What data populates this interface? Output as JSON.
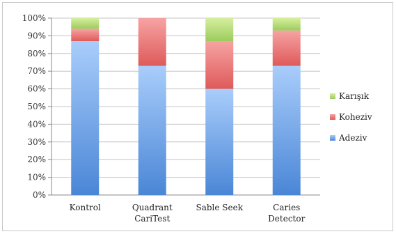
{
  "chart_data": {
    "type": "bar",
    "stacked": true,
    "percent": true,
    "categories": [
      "Kontrol",
      "Quadrant CariTest",
      "Sable Seek",
      "Caries Detector"
    ],
    "category_lines": [
      [
        "Kontrol"
      ],
      [
        "Quadrant",
        "CariTest"
      ],
      [
        "Sable Seek"
      ],
      [
        "Caries",
        "Detector"
      ]
    ],
    "series": [
      {
        "name": "Adeziv",
        "values": [
          87,
          73,
          60,
          73
        ],
        "color": "#4f8fd9"
      },
      {
        "name": "Koheziv",
        "values": [
          7,
          27,
          27,
          20
        ],
        "color": "#e36565"
      },
      {
        "name": "Karışık",
        "values": [
          6,
          0,
          13,
          7
        ],
        "color": "#a6cf6a"
      }
    ],
    "legend_order": [
      "Karışık",
      "Koheziv",
      "Adeziv"
    ],
    "ylim": [
      0,
      100
    ],
    "yticks": [
      "0%",
      "10%",
      "20%",
      "30%",
      "40%",
      "50%",
      "60%",
      "70%",
      "80%",
      "90%",
      "100%"
    ],
    "grid": true,
    "legend_position": "right"
  }
}
